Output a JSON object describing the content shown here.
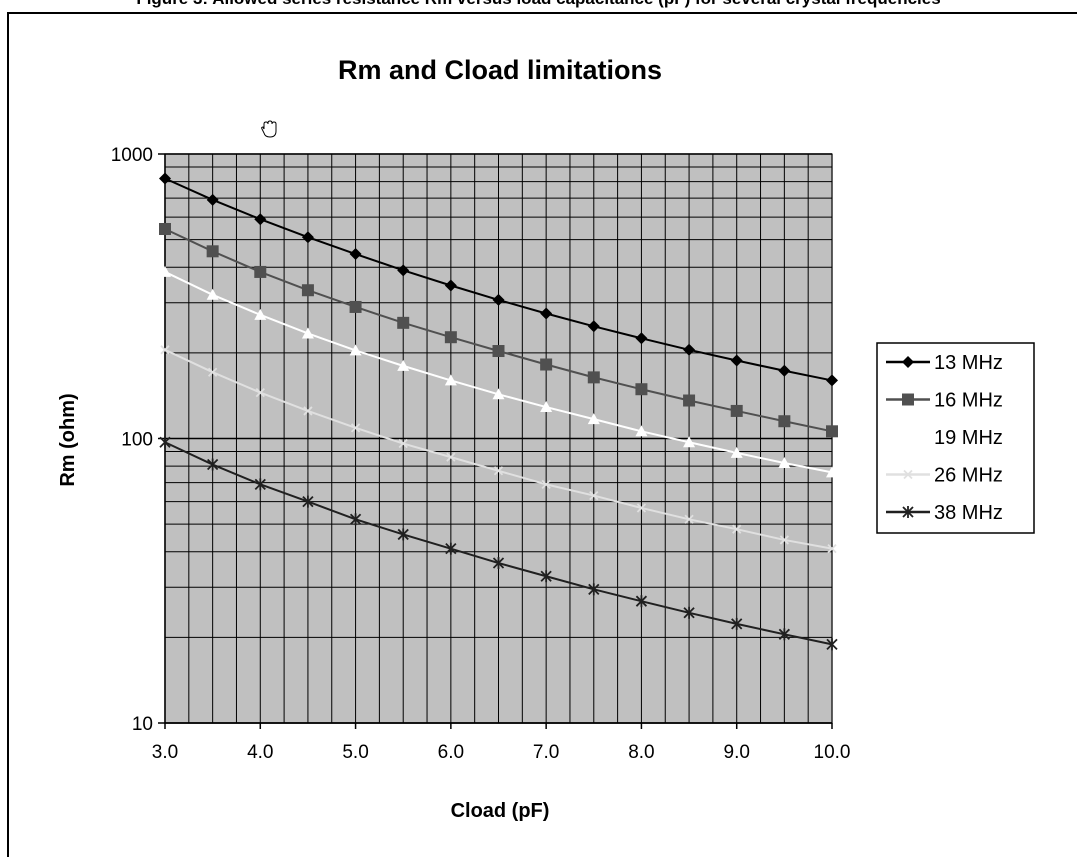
{
  "page": {
    "caption": "Figure 3: Allowed series resistance Rm versus load capacitance (pF) for several crystal frequencies"
  },
  "chart_data": {
    "type": "line",
    "title": "Rm and Cload limitations",
    "xlabel": "Cload (pF)",
    "ylabel": "Rm (ohm)",
    "xlim": [
      3.0,
      10.0
    ],
    "ylim": [
      10,
      1000
    ],
    "yscale": "log",
    "x_ticks": [
      "3.0",
      "4.0",
      "5.0",
      "6.0",
      "7.0",
      "8.0",
      "9.0",
      "10.0"
    ],
    "y_ticks": [
      "10",
      "100",
      "1000"
    ],
    "grid": true,
    "legend_position": "right",
    "plot_background": "#c0c0c0",
    "x": [
      3.0,
      3.5,
      4.0,
      4.5,
      5.0,
      5.5,
      6.0,
      6.5,
      7.0,
      7.5,
      8.0,
      8.5,
      9.0,
      9.5,
      10.0
    ],
    "series": [
      {
        "name": "13 MHz",
        "color": "#000000",
        "marker": "diamond",
        "values": [
          820,
          690,
          590,
          510,
          445,
          390,
          345,
          307,
          275,
          248,
          225,
          205,
          188,
          173,
          160
        ]
      },
      {
        "name": "16 MHz",
        "color": "#505050",
        "marker": "square",
        "values": [
          545,
          455,
          385,
          332,
          290,
          255,
          227,
          203,
          182,
          164,
          149,
          136,
          125,
          115,
          106
        ]
      },
      {
        "name": "19 MHz",
        "color": "#ffffff",
        "marker": "triangle",
        "values": [
          385,
          320,
          272,
          234,
          204,
          180,
          160,
          143,
          129,
          117,
          106,
          97,
          89,
          82,
          76
        ]
      },
      {
        "name": "26 MHz",
        "color": "#e0e0e0",
        "marker": "x",
        "values": [
          205,
          171,
          145,
          125,
          109,
          96,
          86,
          77,
          69,
          63,
          57,
          52,
          48,
          44,
          41
        ]
      },
      {
        "name": "38 MHz",
        "color": "#202020",
        "marker": "star",
        "values": [
          97,
          81,
          69,
          60,
          52,
          46,
          41,
          36.5,
          32.8,
          29.5,
          26.8,
          24.4,
          22.3,
          20.5,
          18.9
        ]
      }
    ]
  }
}
